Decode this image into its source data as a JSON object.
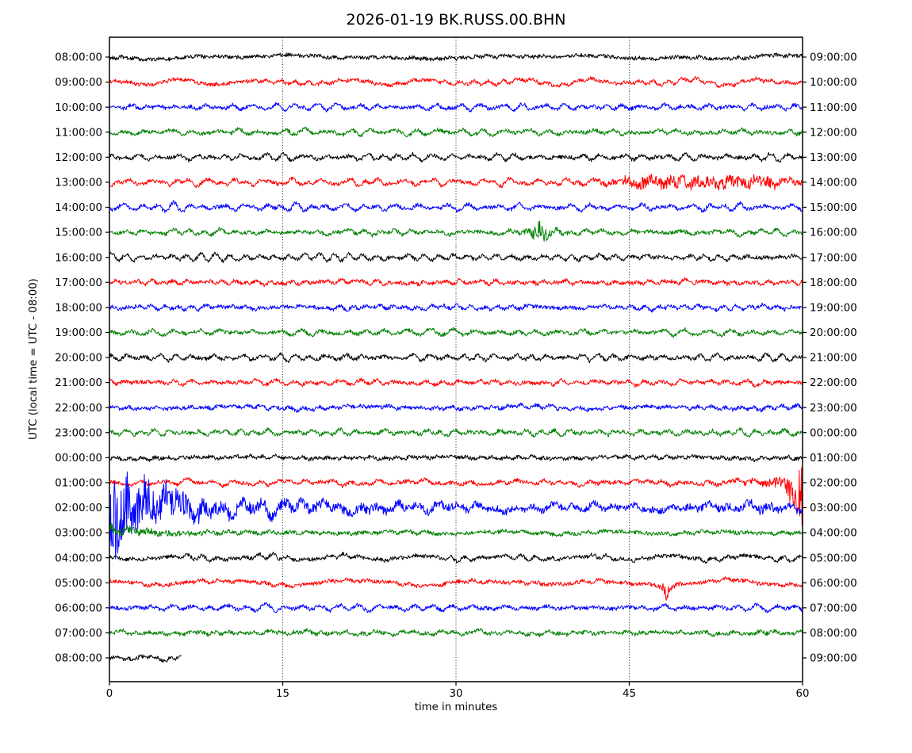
{
  "chart_data": {
    "type": "line",
    "subtype": "seismogram-helicorder-dayplot",
    "title": "2026-01-19 BK.RUSS.00.BHN",
    "date": "2026-01-19",
    "station": "BK.RUSS.00.BHN",
    "xlabel": "time in minutes",
    "ylabel": "UTC (local time = UTC - 08:00)",
    "x_range_minutes": [
      0,
      60
    ],
    "x_ticks": [
      {
        "value": 0,
        "label": "0"
      },
      {
        "value": 15,
        "label": "15"
      },
      {
        "value": 30,
        "label": "30"
      },
      {
        "value": 45,
        "label": "45"
      },
      {
        "value": 60,
        "label": "60"
      }
    ],
    "grid_x_minutes": [
      15,
      30,
      45
    ],
    "grid_style": "dotted",
    "legend": "none",
    "trace_color_cycle": [
      "#000000",
      "#ff0000",
      "#0000ff",
      "#008000"
    ],
    "rows": [
      {
        "utc": "08:00:00",
        "local": "09:00:00",
        "color": "#000000"
      },
      {
        "utc": "09:00:00",
        "local": "10:00:00",
        "color": "#ff0000"
      },
      {
        "utc": "10:00:00",
        "local": "11:00:00",
        "color": "#0000ff"
      },
      {
        "utc": "11:00:00",
        "local": "12:00:00",
        "color": "#008000"
      },
      {
        "utc": "12:00:00",
        "local": "13:00:00",
        "color": "#000000"
      },
      {
        "utc": "13:00:00",
        "local": "14:00:00",
        "color": "#ff0000"
      },
      {
        "utc": "14:00:00",
        "local": "15:00:00",
        "color": "#0000ff"
      },
      {
        "utc": "15:00:00",
        "local": "16:00:00",
        "color": "#008000"
      },
      {
        "utc": "16:00:00",
        "local": "17:00:00",
        "color": "#000000"
      },
      {
        "utc": "17:00:00",
        "local": "18:00:00",
        "color": "#ff0000"
      },
      {
        "utc": "18:00:00",
        "local": "19:00:00",
        "color": "#0000ff"
      },
      {
        "utc": "19:00:00",
        "local": "20:00:00",
        "color": "#008000"
      },
      {
        "utc": "20:00:00",
        "local": "21:00:00",
        "color": "#000000"
      },
      {
        "utc": "21:00:00",
        "local": "22:00:00",
        "color": "#ff0000"
      },
      {
        "utc": "22:00:00",
        "local": "23:00:00",
        "color": "#0000ff"
      },
      {
        "utc": "23:00:00",
        "local": "00:00:00",
        "color": "#008000"
      },
      {
        "utc": "00:00:00",
        "local": "01:00:00",
        "color": "#000000"
      },
      {
        "utc": "01:00:00",
        "local": "02:00:00",
        "color": "#ff0000"
      },
      {
        "utc": "02:00:00",
        "local": "03:00:00",
        "color": "#0000ff"
      },
      {
        "utc": "03:00:00",
        "local": "04:00:00",
        "color": "#008000"
      },
      {
        "utc": "04:00:00",
        "local": "05:00:00",
        "color": "#000000"
      },
      {
        "utc": "05:00:00",
        "local": "06:00:00",
        "color": "#ff0000"
      },
      {
        "utc": "06:00:00",
        "local": "07:00:00",
        "color": "#0000ff"
      },
      {
        "utc": "07:00:00",
        "local": "08:00:00",
        "color": "#008000"
      },
      {
        "utc": "08:00:00",
        "local": "09:00:00",
        "color": "#000000",
        "end_minute": 6.2
      }
    ],
    "events": [
      {
        "row": 5,
        "row_utc": "13:00:00",
        "type": "tremor",
        "t0": 45,
        "t1": 57.5,
        "amp": 2.2,
        "edge": 1.5,
        "description": "elevated high-frequency tremor minutes 45-57"
      },
      {
        "row": 7,
        "row_utc": "15:00:00",
        "type": "spike",
        "t": 37.3,
        "amp": 5,
        "tau": 0.7,
        "description": "short local burst near minute 37"
      },
      {
        "row": 17,
        "row_utc": "01:00:00",
        "type": "onset",
        "t": 60,
        "amp": 14,
        "tau": 0.8,
        "down_offset": 18,
        "description": "earthquake onset at very end of hour"
      },
      {
        "row": 17,
        "row_utc": "01:00:00",
        "type": "onset",
        "t": 60,
        "amp": 1.5,
        "tau": 4,
        "down_offset": 0,
        "description": "amplitude rising toward onset"
      },
      {
        "row": 18,
        "row_utc": "02:00:00",
        "type": "decay",
        "t0": 0,
        "terms": [
          [
            20,
            2.8
          ],
          [
            4,
            14
          ]
        ],
        "floor": 0.5,
        "description": "large earthquake coda decaying over ~20 minutes, overlaps neighbouring rows"
      },
      {
        "row": 18,
        "row_utc": "02:00:00",
        "type": "spike",
        "t": 56,
        "amp": 1.2,
        "tau": 2.5,
        "description": "small swell near minute 56"
      },
      {
        "row": 19,
        "row_utc": "03:00:00",
        "type": "decay",
        "t0": 0,
        "terms": [
          [
            1.6,
            4.5
          ]
        ],
        "floor": 0,
        "description": "slightly elevated noise at start of hour"
      },
      {
        "row": 21,
        "row_utc": "05:00:00",
        "type": "spike",
        "t": 48.2,
        "amp": 3,
        "tau": 0.35,
        "down_offset": 16,
        "description": "short downward transient near minute 48"
      }
    ]
  }
}
